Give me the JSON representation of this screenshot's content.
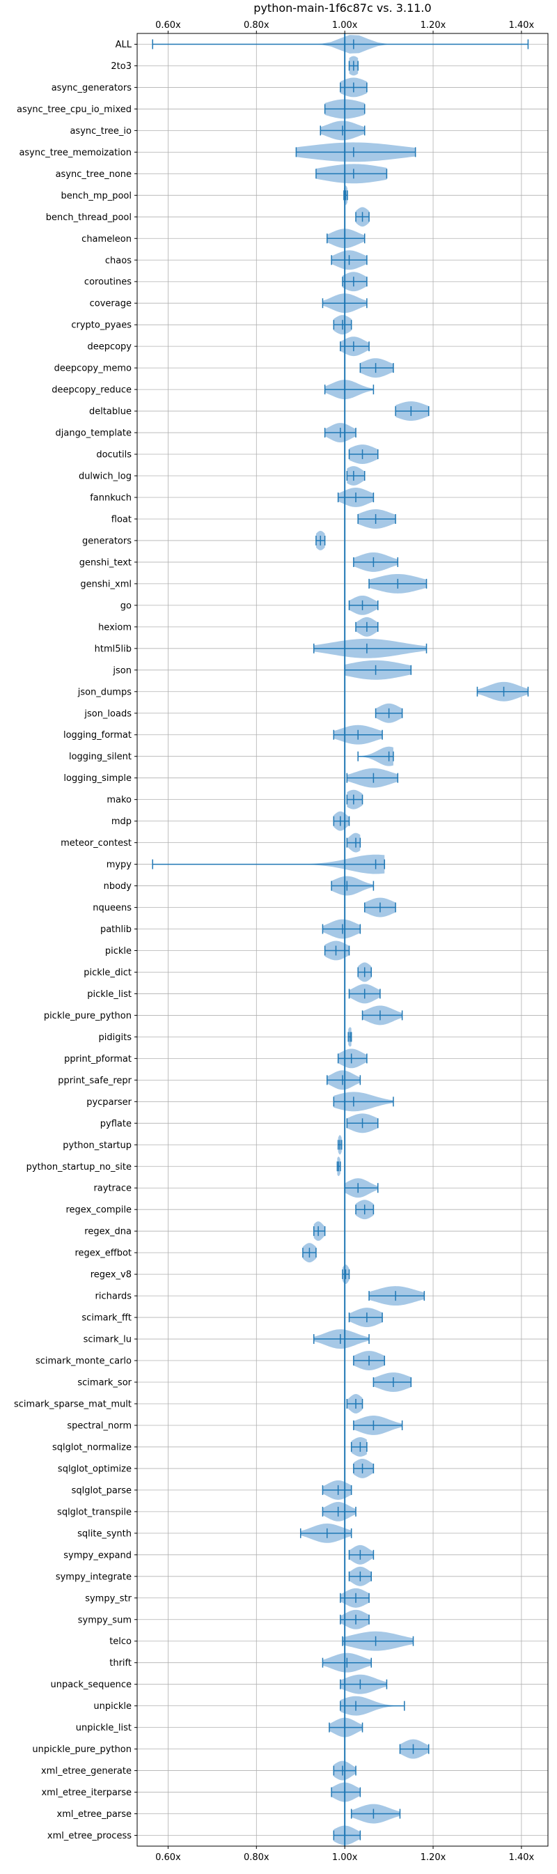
{
  "chart_data": {
    "type": "violin",
    "title": "python-main-1f6c87c vs. 3.11.0",
    "x_ticks": [
      "0.60x",
      "0.80x",
      "1.00x",
      "1.20x",
      "1.40x"
    ],
    "x_tick_values": [
      0.6,
      0.8,
      1.0,
      1.2,
      1.4
    ],
    "xlim": [
      0.53,
      1.46
    ],
    "reference_line": 1.0,
    "grid": true,
    "colors": {
      "violin": "#a6c8e6",
      "line": "#1f77b4",
      "grid": "#b0b0b0"
    },
    "benchmarks": [
      {
        "name": "ALL",
        "min": 0.565,
        "max": 1.415,
        "median": 1.02,
        "spread": 0.03
      },
      {
        "name": "2to3",
        "min": 1.01,
        "max": 1.03,
        "median": 1.02,
        "spread": 0.015
      },
      {
        "name": "async_generators",
        "min": 0.99,
        "max": 1.05,
        "median": 1.02,
        "spread": 0.03
      },
      {
        "name": "async_tree_cpu_io_mixed",
        "min": 0.955,
        "max": 1.045,
        "median": 1.0,
        "spread": 0.045
      },
      {
        "name": "async_tree_io",
        "min": 0.945,
        "max": 1.045,
        "median": 0.995,
        "spread": 0.035
      },
      {
        "name": "async_tree_memoization",
        "min": 0.89,
        "max": 1.16,
        "median": 1.02,
        "spread": 0.11
      },
      {
        "name": "async_tree_none",
        "min": 0.935,
        "max": 1.095,
        "median": 1.02,
        "spread": 0.075
      },
      {
        "name": "bench_mp_pool",
        "min": 0.998,
        "max": 1.006,
        "median": 1.002,
        "spread": 0.005
      },
      {
        "name": "bench_thread_pool",
        "min": 1.025,
        "max": 1.055,
        "median": 1.04,
        "spread": 0.015
      },
      {
        "name": "chameleon",
        "min": 0.96,
        "max": 1.045,
        "median": 1.0,
        "spread": 0.03
      },
      {
        "name": "chaos",
        "min": 0.97,
        "max": 1.05,
        "median": 1.01,
        "spread": 0.03
      },
      {
        "name": "coroutines",
        "min": 0.995,
        "max": 1.05,
        "median": 1.02,
        "spread": 0.025
      },
      {
        "name": "coverage",
        "min": 0.95,
        "max": 1.05,
        "median": 1.0,
        "spread": 0.03
      },
      {
        "name": "crypto_pyaes",
        "min": 0.975,
        "max": 1.015,
        "median": 0.995,
        "spread": 0.02
      },
      {
        "name": "deepcopy",
        "min": 0.99,
        "max": 1.055,
        "median": 1.02,
        "spread": 0.025
      },
      {
        "name": "deepcopy_memo",
        "min": 1.035,
        "max": 1.11,
        "median": 1.07,
        "spread": 0.03
      },
      {
        "name": "deepcopy_reduce",
        "min": 0.955,
        "max": 1.065,
        "median": 1.0,
        "spread": 0.03
      },
      {
        "name": "deltablue",
        "min": 1.115,
        "max": 1.19,
        "median": 1.15,
        "spread": 0.035
      },
      {
        "name": "django_template",
        "min": 0.955,
        "max": 1.025,
        "median": 0.99,
        "spread": 0.025
      },
      {
        "name": "docutils",
        "min": 1.01,
        "max": 1.075,
        "median": 1.04,
        "spread": 0.03
      },
      {
        "name": "dulwich_log",
        "min": 1.005,
        "max": 1.045,
        "median": 1.02,
        "spread": 0.02
      },
      {
        "name": "fannkuch",
        "min": 0.985,
        "max": 1.065,
        "median": 1.025,
        "spread": 0.03
      },
      {
        "name": "float",
        "min": 1.03,
        "max": 1.115,
        "median": 1.07,
        "spread": 0.035
      },
      {
        "name": "generators",
        "min": 0.935,
        "max": 0.955,
        "median": 0.945,
        "spread": 0.012
      },
      {
        "name": "genshi_text",
        "min": 1.02,
        "max": 1.12,
        "median": 1.065,
        "spread": 0.035
      },
      {
        "name": "genshi_xml",
        "min": 1.055,
        "max": 1.185,
        "median": 1.12,
        "spread": 0.05
      },
      {
        "name": "go",
        "min": 1.01,
        "max": 1.075,
        "median": 1.04,
        "spread": 0.025
      },
      {
        "name": "hexiom",
        "min": 1.025,
        "max": 1.075,
        "median": 1.05,
        "spread": 0.02
      },
      {
        "name": "html5lib",
        "min": 0.93,
        "max": 1.185,
        "median": 1.05,
        "spread": 0.08
      },
      {
        "name": "json",
        "min": 1.0,
        "max": 1.15,
        "median": 1.07,
        "spread": 0.065
      },
      {
        "name": "json_dumps",
        "min": 1.3,
        "max": 1.415,
        "median": 1.36,
        "spread": 0.035
      },
      {
        "name": "json_loads",
        "min": 1.07,
        "max": 1.13,
        "median": 1.1,
        "spread": 0.025
      },
      {
        "name": "logging_format",
        "min": 0.975,
        "max": 1.085,
        "median": 1.03,
        "spread": 0.04
      },
      {
        "name": "logging_silent",
        "min": 1.03,
        "max": 1.11,
        "median": 1.1,
        "spread": 0.025
      },
      {
        "name": "logging_simple",
        "min": 1.005,
        "max": 1.12,
        "median": 1.065,
        "spread": 0.04
      },
      {
        "name": "mako",
        "min": 1.005,
        "max": 1.04,
        "median": 1.02,
        "spread": 0.02
      },
      {
        "name": "mdp",
        "min": 0.975,
        "max": 1.01,
        "median": 0.99,
        "spread": 0.015
      },
      {
        "name": "meteor_contest",
        "min": 1.005,
        "max": 1.035,
        "median": 1.025,
        "spread": 0.015
      },
      {
        "name": "mypy",
        "min": 0.565,
        "max": 1.09,
        "median": 1.07,
        "spread": 0.06
      },
      {
        "name": "nbody",
        "min": 0.97,
        "max": 1.065,
        "median": 1.005,
        "spread": 0.03
      },
      {
        "name": "nqueens",
        "min": 1.045,
        "max": 1.115,
        "median": 1.08,
        "spread": 0.03
      },
      {
        "name": "pathlib",
        "min": 0.95,
        "max": 1.035,
        "median": 0.995,
        "spread": 0.03
      },
      {
        "name": "pickle",
        "min": 0.955,
        "max": 1.01,
        "median": 0.98,
        "spread": 0.025
      },
      {
        "name": "pickle_dict",
        "min": 1.03,
        "max": 1.06,
        "median": 1.045,
        "spread": 0.015
      },
      {
        "name": "pickle_list",
        "min": 1.01,
        "max": 1.08,
        "median": 1.045,
        "spread": 0.025
      },
      {
        "name": "pickle_pure_python",
        "min": 1.04,
        "max": 1.13,
        "median": 1.08,
        "spread": 0.03
      },
      {
        "name": "pidigits",
        "min": 1.008,
        "max": 1.015,
        "median": 1.012,
        "spread": 0.006
      },
      {
        "name": "pprint_pformat",
        "min": 0.985,
        "max": 1.05,
        "median": 1.015,
        "spread": 0.025
      },
      {
        "name": "pprint_safe_repr",
        "min": 0.96,
        "max": 1.035,
        "median": 0.995,
        "spread": 0.025
      },
      {
        "name": "pycparser",
        "min": 0.975,
        "max": 1.11,
        "median": 1.02,
        "spread": 0.045
      },
      {
        "name": "pyflate",
        "min": 1.005,
        "max": 1.075,
        "median": 1.04,
        "spread": 0.03
      },
      {
        "name": "python_startup",
        "min": 0.985,
        "max": 0.993,
        "median": 0.989,
        "spread": 0.005
      },
      {
        "name": "python_startup_no_site",
        "min": 0.983,
        "max": 0.99,
        "median": 0.986,
        "spread": 0.005
      },
      {
        "name": "raytrace",
        "min": 1.0,
        "max": 1.075,
        "median": 1.03,
        "spread": 0.025
      },
      {
        "name": "regex_compile",
        "min": 1.025,
        "max": 1.065,
        "median": 1.045,
        "spread": 0.02
      },
      {
        "name": "regex_dna",
        "min": 0.93,
        "max": 0.955,
        "median": 0.94,
        "spread": 0.012
      },
      {
        "name": "regex_effbot",
        "min": 0.905,
        "max": 0.935,
        "median": 0.92,
        "spread": 0.015
      },
      {
        "name": "regex_v8",
        "min": 0.995,
        "max": 1.01,
        "median": 1.002,
        "spread": 0.008
      },
      {
        "name": "richards",
        "min": 1.055,
        "max": 1.18,
        "median": 1.115,
        "spread": 0.045
      },
      {
        "name": "scimark_fft",
        "min": 1.01,
        "max": 1.085,
        "median": 1.05,
        "spread": 0.03
      },
      {
        "name": "scimark_lu",
        "min": 0.93,
        "max": 1.055,
        "median": 0.99,
        "spread": 0.035
      },
      {
        "name": "scimark_monte_carlo",
        "min": 1.02,
        "max": 1.09,
        "median": 1.055,
        "spread": 0.03
      },
      {
        "name": "scimark_sor",
        "min": 1.065,
        "max": 1.15,
        "median": 1.11,
        "spread": 0.035
      },
      {
        "name": "scimark_sparse_mat_mult",
        "min": 1.005,
        "max": 1.04,
        "median": 1.025,
        "spread": 0.015
      },
      {
        "name": "spectral_norm",
        "min": 1.02,
        "max": 1.13,
        "median": 1.065,
        "spread": 0.035
      },
      {
        "name": "sqlglot_normalize",
        "min": 1.015,
        "max": 1.05,
        "median": 1.035,
        "spread": 0.02
      },
      {
        "name": "sqlglot_optimize",
        "min": 1.02,
        "max": 1.065,
        "median": 1.04,
        "spread": 0.02
      },
      {
        "name": "sqlglot_parse",
        "min": 0.95,
        "max": 1.015,
        "median": 0.985,
        "spread": 0.025
      },
      {
        "name": "sqlglot_transpile",
        "min": 0.95,
        "max": 1.025,
        "median": 0.985,
        "spread": 0.025
      },
      {
        "name": "sqlite_synth",
        "min": 0.9,
        "max": 1.015,
        "median": 0.96,
        "spread": 0.035
      },
      {
        "name": "sympy_expand",
        "min": 1.01,
        "max": 1.065,
        "median": 1.035,
        "spread": 0.02
      },
      {
        "name": "sympy_integrate",
        "min": 1.01,
        "max": 1.06,
        "median": 1.035,
        "spread": 0.02
      },
      {
        "name": "sympy_str",
        "min": 0.99,
        "max": 1.055,
        "median": 1.025,
        "spread": 0.025
      },
      {
        "name": "sympy_sum",
        "min": 0.99,
        "max": 1.055,
        "median": 1.025,
        "spread": 0.025
      },
      {
        "name": "telco",
        "min": 0.995,
        "max": 1.155,
        "median": 1.07,
        "spread": 0.055
      },
      {
        "name": "thrift",
        "min": 0.95,
        "max": 1.06,
        "median": 1.005,
        "spread": 0.035
      },
      {
        "name": "unpack_sequence",
        "min": 0.99,
        "max": 1.095,
        "median": 1.035,
        "spread": 0.035
      },
      {
        "name": "unpickle",
        "min": 0.99,
        "max": 1.135,
        "median": 1.025,
        "spread": 0.035
      },
      {
        "name": "unpickle_list",
        "min": 0.965,
        "max": 1.04,
        "median": 1.0,
        "spread": 0.025
      },
      {
        "name": "unpickle_pure_python",
        "min": 1.125,
        "max": 1.19,
        "median": 1.155,
        "spread": 0.025
      },
      {
        "name": "xml_etree_generate",
        "min": 0.975,
        "max": 1.025,
        "median": 0.995,
        "spread": 0.02
      },
      {
        "name": "xml_etree_iterparse",
        "min": 0.97,
        "max": 1.035,
        "median": 1.0,
        "spread": 0.025
      },
      {
        "name": "xml_etree_parse",
        "min": 1.015,
        "max": 1.125,
        "median": 1.065,
        "spread": 0.035
      },
      {
        "name": "xml_etree_process",
        "min": 0.975,
        "max": 1.035,
        "median": 1.0,
        "spread": 0.025
      }
    ]
  }
}
